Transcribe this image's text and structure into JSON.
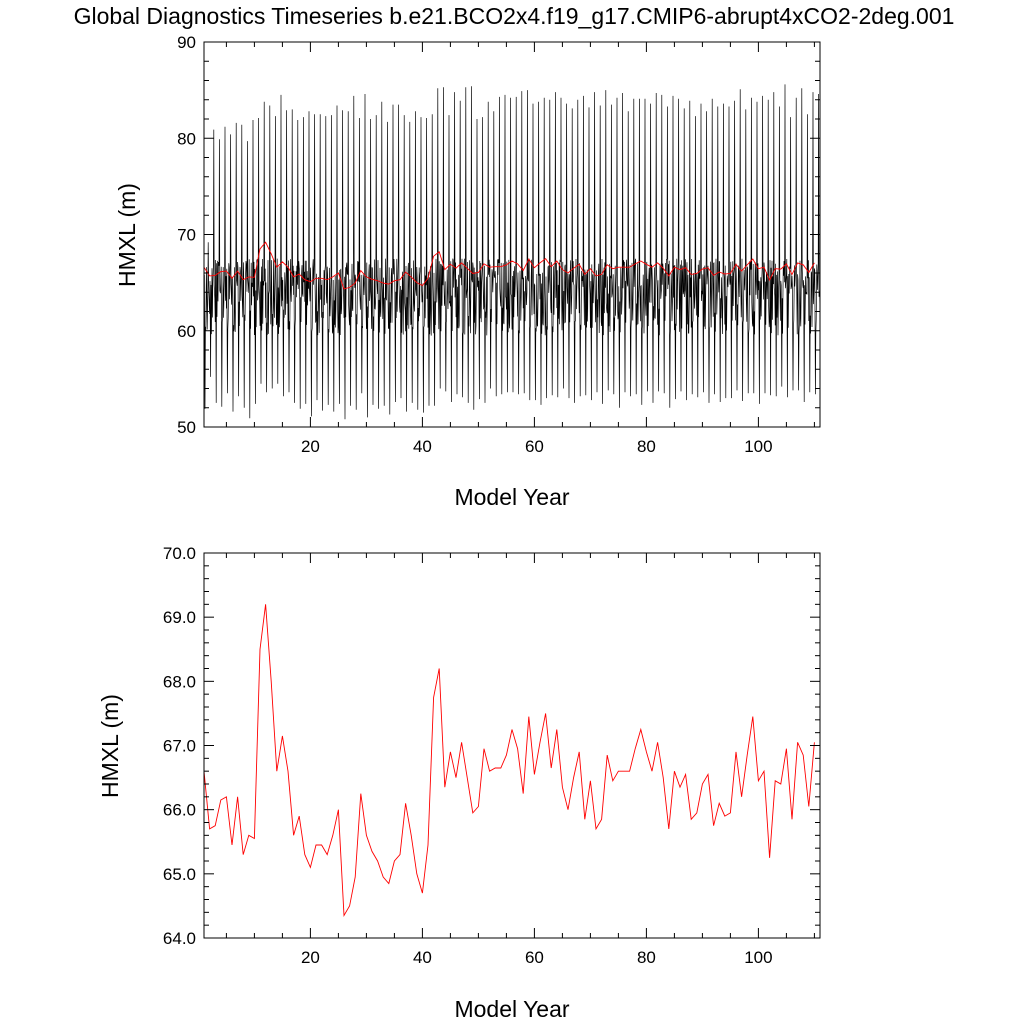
{
  "title": "Global Diagnostics Timeseries b.e21.BCO2x4.f19_g17.CMIP6-abrupt4xCO2-2deg.001",
  "colors": {
    "monthly": "#000000",
    "annual": "#ff0000",
    "axes": "#000000"
  },
  "chart_data": [
    {
      "type": "line",
      "xlabel": "Model Year",
      "ylabel": "HMXL (m)",
      "xlim": [
        1,
        111
      ],
      "ylim": [
        50,
        90
      ],
      "xticks": [
        "20",
        "40",
        "60",
        "80",
        "100"
      ],
      "yticks": [
        "50",
        "60",
        "70",
        "80",
        "90"
      ],
      "monthly": {
        "peaks": [
          69.2,
          80.9,
          79.9,
          81.2,
          80.4,
          81.6,
          81.4,
          79.7,
          81.9,
          82.1,
          83.8,
          83.4,
          82.3,
          84.5,
          82.9,
          83.0,
          81.9,
          82.2,
          82.8,
          82.5,
          82.5,
          82.3,
          82.4,
          83.4,
          82.9,
          82.8,
          84.4,
          82.1,
          84.6,
          82.0,
          82.4,
          83.8,
          81.7,
          83.5,
          83.5,
          82.4,
          81.7,
          82.8,
          82.2,
          82.1,
          82.5,
          85.2,
          85.3,
          82.4,
          84.8,
          83.9,
          85.3,
          85.4,
          82.0,
          82.2,
          83.8,
          82.8,
          84.3,
          84.5,
          84.2,
          84.3,
          84.9,
          85.0,
          83.6,
          83.8,
          84.2,
          84.0,
          84.8,
          84.2,
          83.6,
          83.1,
          84.0,
          84.4,
          83.2,
          84.8,
          83.4,
          85.0,
          83.5,
          84.2,
          84.7,
          82.8,
          84.1,
          84.1,
          84.1,
          83.6,
          84.7,
          84.5,
          83.3,
          84.4,
          84.1,
          83.1,
          83.9,
          82.3,
          83.6,
          82.8,
          84.1,
          83.3,
          83.6,
          83.3,
          83.9,
          85.1,
          83.0,
          84.2,
          83.8,
          84.4,
          84.0,
          84.8,
          83.3,
          85.6,
          82.2,
          84.2,
          85.2,
          82.5,
          84.8,
          84.6,
          84.3
        ],
        "troughs": [
          51.9,
          55.2,
          52.5,
          52.1,
          53.5,
          51.6,
          53.2,
          52.0,
          50.9,
          52.4,
          54.5,
          53.6,
          54.0,
          54.5,
          53.2,
          53.6,
          52.5,
          51.9,
          52.4,
          51.1,
          52.8,
          51.7,
          52.3,
          51.6,
          52.4,
          50.8,
          52.2,
          51.8,
          53.5,
          51.0,
          52.3,
          51.9,
          52.2,
          51.3,
          52.6,
          53.0,
          51.6,
          52.5,
          51.8,
          51.5,
          52.2,
          52.2,
          54.0,
          53.7,
          52.6,
          53.4,
          53.1,
          52.5,
          51.8,
          52.9,
          52.5,
          54.0,
          53.2,
          53.4,
          53.6,
          53.6,
          53.4,
          53.5,
          52.8,
          52.8,
          52.3,
          53.0,
          53.3,
          53.1,
          54.0,
          53.0,
          52.5,
          53.2,
          53.3,
          52.8,
          53.6,
          52.4,
          53.8,
          53.4,
          52.0,
          53.6,
          53.2,
          53.4,
          52.3,
          53.7,
          52.5,
          53.7,
          53.5,
          52.0,
          52.9,
          53.7,
          52.8,
          53.4,
          53.1,
          53.6,
          52.5,
          53.4,
          52.6,
          53.0,
          53.0,
          53.8,
          52.7,
          53.5,
          53.5,
          52.4,
          53.5,
          53.3,
          53.2,
          54.2,
          53.1,
          53.8,
          53.8,
          52.6,
          53.6,
          53.4,
          53.9
        ],
        "mid_range": [
          59.5,
          67.5
        ]
      },
      "annual_mean": [
        66.6,
        65.7,
        65.75,
        66.15,
        66.2,
        65.45,
        66.2,
        65.3,
        65.6,
        65.55,
        68.5,
        69.2,
        68.0,
        66.6,
        67.15,
        66.6,
        65.6,
        65.9,
        65.3,
        65.1,
        65.45,
        65.45,
        65.3,
        65.6,
        66.0,
        64.35,
        64.5,
        64.95,
        66.25,
        65.6,
        65.35,
        65.2,
        64.95,
        64.85,
        65.2,
        65.3,
        66.1,
        65.6,
        65.0,
        64.7,
        65.45,
        67.75,
        68.2,
        66.35,
        66.9,
        66.5,
        67.05,
        66.5,
        65.95,
        66.05,
        66.95,
        66.6,
        66.65,
        66.65,
        66.85,
        67.25,
        66.95,
        66.25,
        67.45,
        66.55,
        67.05,
        67.5,
        66.65,
        67.25,
        66.35,
        66.0,
        66.5,
        66.9,
        65.85,
        66.45,
        65.7,
        65.85,
        66.85,
        66.45,
        66.6,
        66.6,
        66.6,
        66.95,
        67.25,
        66.9,
        66.6,
        67.05,
        66.5,
        65.7,
        66.6,
        66.35,
        66.55,
        65.85,
        65.95,
        66.4,
        66.55,
        65.75,
        66.1,
        65.9,
        65.95,
        66.9,
        66.2,
        66.85,
        67.45,
        66.45,
        66.6,
        65.25,
        66.45,
        66.4,
        66.95,
        65.85,
        67.05,
        66.85,
        66.05,
        67.05
      ]
    },
    {
      "type": "line",
      "xlabel": "Model Year",
      "ylabel": "HMXL (m)",
      "xlim": [
        1,
        111
      ],
      "ylim": [
        64.0,
        70.0
      ],
      "xticks": [
        "20",
        "40",
        "60",
        "80",
        "100"
      ],
      "yticks": [
        "64.0",
        "65.0",
        "66.0",
        "67.0",
        "68.0",
        "69.0",
        "70.0"
      ],
      "annual_mean": [
        66.6,
        65.7,
        65.75,
        66.15,
        66.2,
        65.45,
        66.2,
        65.3,
        65.6,
        65.55,
        68.5,
        69.2,
        68.0,
        66.6,
        67.15,
        66.6,
        65.6,
        65.9,
        65.3,
        65.1,
        65.45,
        65.45,
        65.3,
        65.6,
        66.0,
        64.35,
        64.5,
        64.95,
        66.25,
        65.6,
        65.35,
        65.2,
        64.95,
        64.85,
        65.2,
        65.3,
        66.1,
        65.6,
        65.0,
        64.7,
        65.45,
        67.75,
        68.2,
        66.35,
        66.9,
        66.5,
        67.05,
        66.5,
        65.95,
        66.05,
        66.95,
        66.6,
        66.65,
        66.65,
        66.85,
        67.25,
        66.95,
        66.25,
        67.45,
        66.55,
        67.05,
        67.5,
        66.65,
        67.25,
        66.35,
        66.0,
        66.5,
        66.9,
        65.85,
        66.45,
        65.7,
        65.85,
        66.85,
        66.45,
        66.6,
        66.6,
        66.6,
        66.95,
        67.25,
        66.9,
        66.6,
        67.05,
        66.5,
        65.7,
        66.6,
        66.35,
        66.55,
        65.85,
        65.95,
        66.4,
        66.55,
        65.75,
        66.1,
        65.9,
        65.95,
        66.9,
        66.2,
        66.85,
        67.45,
        66.45,
        66.6,
        65.25,
        66.45,
        66.4,
        66.95,
        65.85,
        67.05,
        66.85,
        66.05,
        67.05
      ]
    }
  ]
}
